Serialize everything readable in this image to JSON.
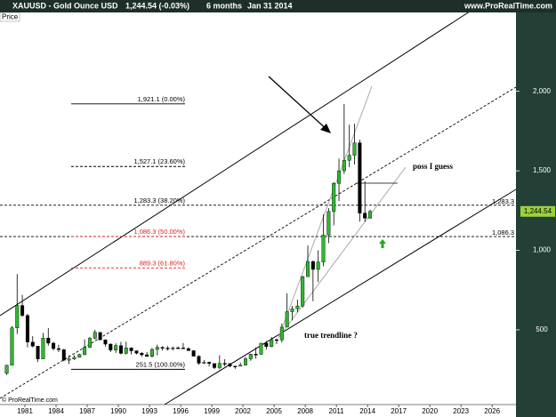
{
  "chart_data": {
    "type": "candlestick",
    "title": "XAUUSD - Gold Ounce USD",
    "last_change": "1,244.54 (-0.03%)",
    "period": "6 months",
    "date": "Jan 31 2014",
    "source": "www.ProRealTime.com",
    "panel_label": "Price",
    "copyright": "© ProRealTime.com",
    "annotations": [
      "poss I guess",
      "true trendline ?"
    ],
    "xlim": [
      1978.6,
      2028.3
    ],
    "xticks": [
      1981,
      1984,
      1987,
      1990,
      1993,
      1996,
      1999,
      2002,
      2005,
      2008,
      2011,
      2014,
      2017,
      2020,
      2023,
      2026
    ],
    "ylim": [
      30,
      2440
    ],
    "yticks": [
      {
        "value": 500,
        "label": "500"
      },
      {
        "value": 1000,
        "label": "1,000"
      },
      {
        "value": 1500,
        "label": "1,500"
      },
      {
        "value": 2000,
        "label": "2,000"
      }
    ],
    "up_color": "#2db82d",
    "down_color": "#000000",
    "x": [
      1979.0,
      1979.5,
      1980.0,
      1980.5,
      1981.0,
      1981.5,
      1982.0,
      1982.5,
      1983.0,
      1983.5,
      1984.0,
      1984.5,
      1985.0,
      1985.5,
      1986.0,
      1986.5,
      1987.0,
      1987.5,
      1988.0,
      1988.5,
      1989.0,
      1989.5,
      1990.0,
      1990.5,
      1991.0,
      1991.5,
      1992.0,
      1992.5,
      1993.0,
      1993.5,
      1994.0,
      1994.5,
      1995.0,
      1995.5,
      1996.0,
      1996.5,
      1997.0,
      1997.5,
      1998.0,
      1998.5,
      1999.0,
      1999.5,
      2000.0,
      2000.5,
      2001.0,
      2001.5,
      2002.0,
      2002.5,
      2003.0,
      2003.5,
      2004.0,
      2004.5,
      2005.0,
      2005.5,
      2006.0,
      2006.5,
      2007.0,
      2007.5,
      2008.0,
      2008.5,
      2009.0,
      2009.5,
      2010.0,
      2010.5,
      2011.0,
      2011.5,
      2012.0,
      2012.5,
      2013.0,
      2013.5,
      2014.0
    ],
    "open": [
      226,
      277,
      512,
      653,
      590,
      423,
      397,
      317,
      448,
      416,
      382,
      375,
      309,
      317,
      327,
      345,
      390,
      447,
      484,
      437,
      410,
      373,
      401,
      352,
      386,
      368,
      353,
      343,
      333,
      377,
      390,
      385,
      383,
      387,
      386,
      382,
      369,
      334,
      290,
      296,
      288,
      262,
      289,
      288,
      272,
      271,
      278,
      318,
      347,
      346,
      416,
      395,
      438,
      437,
      517,
      614,
      632,
      650,
      834,
      930,
      880,
      926,
      1096,
      1244,
      1421,
      1500,
      1566,
      1598,
      1676,
      1234,
      1202
    ],
    "high": [
      280,
      524,
      850,
      720,
      600,
      460,
      400,
      481,
      511,
      425,
      406,
      380,
      340,
      340,
      350,
      440,
      455,
      500,
      485,
      440,
      415,
      415,
      425,
      425,
      390,
      370,
      360,
      360,
      385,
      407,
      397,
      398,
      395,
      395,
      417,
      390,
      370,
      340,
      310,
      300,
      290,
      340,
      315,
      290,
      273,
      295,
      330,
      350,
      390,
      417,
      430,
      455,
      445,
      540,
      730,
      650,
      690,
      840,
      1030,
      935,
      1000,
      1226,
      1265,
      1430,
      1577,
      1920,
      1790,
      1796,
      1696,
      1434,
      1255
    ],
    "low": [
      216,
      277,
      474,
      580,
      390,
      390,
      297,
      317,
      400,
      370,
      360,
      303,
      285,
      310,
      326,
      340,
      385,
      440,
      435,
      395,
      360,
      355,
      345,
      345,
      345,
      345,
      330,
      330,
      326,
      340,
      370,
      370,
      370,
      380,
      380,
      367,
      335,
      280,
      285,
      270,
      252,
      252,
      270,
      264,
      255,
      270,
      277,
      305,
      319,
      343,
      375,
      390,
      410,
      420,
      520,
      560,
      610,
      640,
      850,
      680,
      800,
      900,
      1045,
      1157,
      1309,
      1480,
      1523,
      1540,
      1180,
      1180,
      1200
    ],
    "close": [
      277,
      512,
      653,
      590,
      423,
      397,
      317,
      448,
      416,
      382,
      375,
      309,
      317,
      327,
      345,
      390,
      447,
      484,
      437,
      410,
      373,
      401,
      352,
      386,
      368,
      353,
      343,
      333,
      377,
      390,
      385,
      383,
      387,
      386,
      382,
      369,
      334,
      290,
      296,
      288,
      262,
      289,
      288,
      272,
      271,
      278,
      318,
      347,
      346,
      416,
      395,
      438,
      437,
      517,
      614,
      632,
      650,
      834,
      930,
      880,
      926,
      1096,
      1244,
      1421,
      1500,
      1566,
      1598,
      1676,
      1234,
      1202,
      1244.54
    ],
    "fib_levels": [
      {
        "value": 1921.1,
        "label": "1,921.1 (0.00%)",
        "color": "#000000",
        "dashed": false,
        "extend": false
      },
      {
        "value": 1527.1,
        "label": "1,527.1 (23.60%)",
        "color": "#000000",
        "dashed": true,
        "extend": false
      },
      {
        "value": 1283.3,
        "label": "1,283.3 (38.20%)",
        "color": "#000000",
        "dashed": true,
        "extend": true
      },
      {
        "value": 1086.3,
        "label": "1,086.3 (50.00%)",
        "color": "#e02020",
        "dashed": true,
        "extend": true
      },
      {
        "value": 889.3,
        "label": "889.3 (61.80%)",
        "color": "#e02020",
        "dashed": true,
        "extend": false
      },
      {
        "value": 251.5,
        "label": "251.5 (100.00%)",
        "color": "#000000",
        "dashed": false,
        "extend": false
      }
    ],
    "level_tags": [
      {
        "value": 1283.3,
        "label": "1,283.3"
      },
      {
        "value": 1086.3,
        "label": "1,086.3"
      }
    ],
    "last_price": {
      "value": 1244.54,
      "label": "1,244.54"
    }
  }
}
